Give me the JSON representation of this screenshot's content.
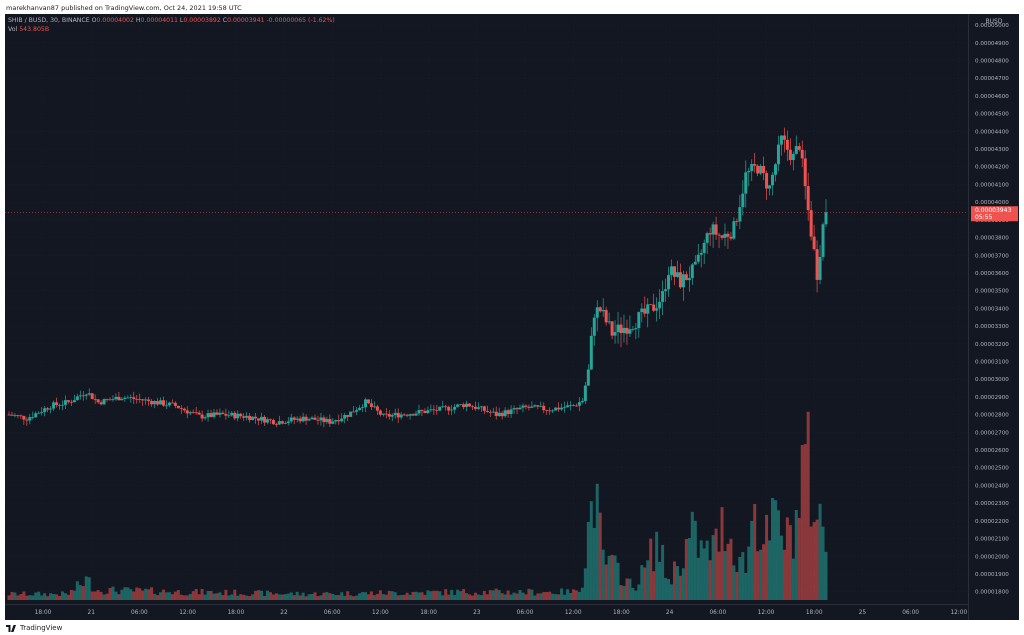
{
  "header": {
    "publisher_text": "marekhanvan87 published on TradingView.com, Oct 24, 2021 19:58 UTC"
  },
  "legend": {
    "symbol": "SHIB / BUSD, 30, BINANCE",
    "open_label": "O",
    "open": "0.00004002",
    "high_label": "H",
    "high": "0.00004011",
    "low_label": "L",
    "low": "0.00003892",
    "close_label": "C",
    "close": "0.00003941",
    "change": "-0.00000065 (-1.62%)",
    "vol_label": "Vol",
    "vol": "543.805B"
  },
  "price_axis": {
    "currency": "BUSD",
    "current_price_label": "0.00003943",
    "countdown_label": "05:55"
  },
  "footer": {
    "brand": "TradingView"
  },
  "colors": {
    "background": "#131722",
    "up": "#26a69a",
    "down": "#ef5350",
    "axis_text": "#b2b5be"
  },
  "chart_data": {
    "type": "candlestick",
    "symbol": "SHIB / BUSD",
    "interval": "30",
    "exchange": "BINANCE",
    "x_ticks": [
      "18:00",
      "21",
      "06:00",
      "12:00",
      "18:00",
      "22",
      "06:00",
      "12:00",
      "18:00",
      "23",
      "06:00",
      "12:00",
      "18:00",
      "24",
      "06:00",
      "12:00",
      "18:00",
      "25",
      "06:00",
      "12:00"
    ],
    "y_ticks": [
      "0.00005000",
      "0.00004900",
      "0.00004800",
      "0.00004700",
      "0.00004600",
      "0.00004500",
      "0.00004400",
      "0.00004300",
      "0.00004200",
      "0.00004100",
      "0.00004000",
      "0.00003900",
      "0.00003800",
      "0.00003700",
      "0.00003600",
      "0.00003500",
      "0.00003400",
      "0.00003300",
      "0.00003200",
      "0.00003100",
      "0.00003000",
      "0.00002900",
      "0.00002800",
      "0.00002700",
      "0.00002600",
      "0.00002500",
      "0.00002400",
      "0.00002300",
      "0.00002200",
      "0.00002100",
      "0.00002000",
      "0.00001900",
      "0.00001800"
    ],
    "ylim": [
      1.77e-05,
      5.04e-05
    ],
    "current_price": 3.943e-05,
    "price_keyframes": [
      [
        0,
        2.8e-05
      ],
      [
        6,
        2.78e-05
      ],
      [
        14,
        2.85e-05
      ],
      [
        20,
        2.87e-05
      ],
      [
        26,
        2.93e-05
      ],
      [
        30,
        2.87e-05
      ],
      [
        38,
        2.9e-05
      ],
      [
        46,
        2.88e-05
      ],
      [
        56,
        2.85e-05
      ],
      [
        64,
        2.79e-05
      ],
      [
        72,
        2.8e-05
      ],
      [
        80,
        2.79e-05
      ],
      [
        90,
        2.76e-05
      ],
      [
        100,
        2.78e-05
      ],
      [
        108,
        2.76e-05
      ],
      [
        114,
        2.8e-05
      ],
      [
        120,
        2.87e-05
      ],
      [
        126,
        2.79e-05
      ],
      [
        136,
        2.81e-05
      ],
      [
        146,
        2.83e-05
      ],
      [
        154,
        2.86e-05
      ],
      [
        164,
        2.8e-05
      ],
      [
        174,
        2.84e-05
      ],
      [
        182,
        2.83e-05
      ],
      [
        190,
        2.85e-05
      ],
      [
        193,
        2.88e-05
      ],
      [
        195,
        3.05e-05
      ],
      [
        197,
        3.38e-05
      ],
      [
        199,
        3.39e-05
      ],
      [
        203,
        3.26e-05
      ],
      [
        209,
        3.31e-05
      ],
      [
        216,
        3.39e-05
      ],
      [
        220,
        3.47e-05
      ],
      [
        222,
        3.62e-05
      ],
      [
        226,
        3.55e-05
      ],
      [
        231,
        3.62e-05
      ],
      [
        236,
        3.85e-05
      ],
      [
        240,
        3.8e-05
      ],
      [
        244,
        3.85e-05
      ],
      [
        248,
        4.15e-05
      ],
      [
        252,
        4.2e-05
      ],
      [
        256,
        4.08e-05
      ],
      [
        260,
        4.35e-05
      ],
      [
        264,
        4.25e-05
      ],
      [
        266,
        4.33e-05
      ],
      [
        269,
        3.95e-05
      ],
      [
        272,
        3.6e-05
      ],
      [
        275,
        4e-05
      ]
    ],
    "volume_keyframes": [
      [
        0,
        6
      ],
      [
        20,
        6
      ],
      [
        26,
        20
      ],
      [
        30,
        10
      ],
      [
        60,
        8
      ],
      [
        100,
        6
      ],
      [
        150,
        8
      ],
      [
        190,
        8
      ],
      [
        193,
        18
      ],
      [
        195,
        70
      ],
      [
        197,
        110
      ],
      [
        200,
        40
      ],
      [
        205,
        30
      ],
      [
        210,
        12
      ],
      [
        214,
        30
      ],
      [
        218,
        58
      ],
      [
        222,
        20
      ],
      [
        226,
        40
      ],
      [
        230,
        65
      ],
      [
        234,
        45
      ],
      [
        238,
        55
      ],
      [
        241,
        80
      ],
      [
        244,
        50
      ],
      [
        248,
        35
      ],
      [
        251,
        95
      ],
      [
        254,
        55
      ],
      [
        258,
        80
      ],
      [
        262,
        60
      ],
      [
        265,
        80
      ],
      [
        268,
        150
      ],
      [
        271,
        95
      ],
      [
        275,
        60
      ]
    ]
  }
}
